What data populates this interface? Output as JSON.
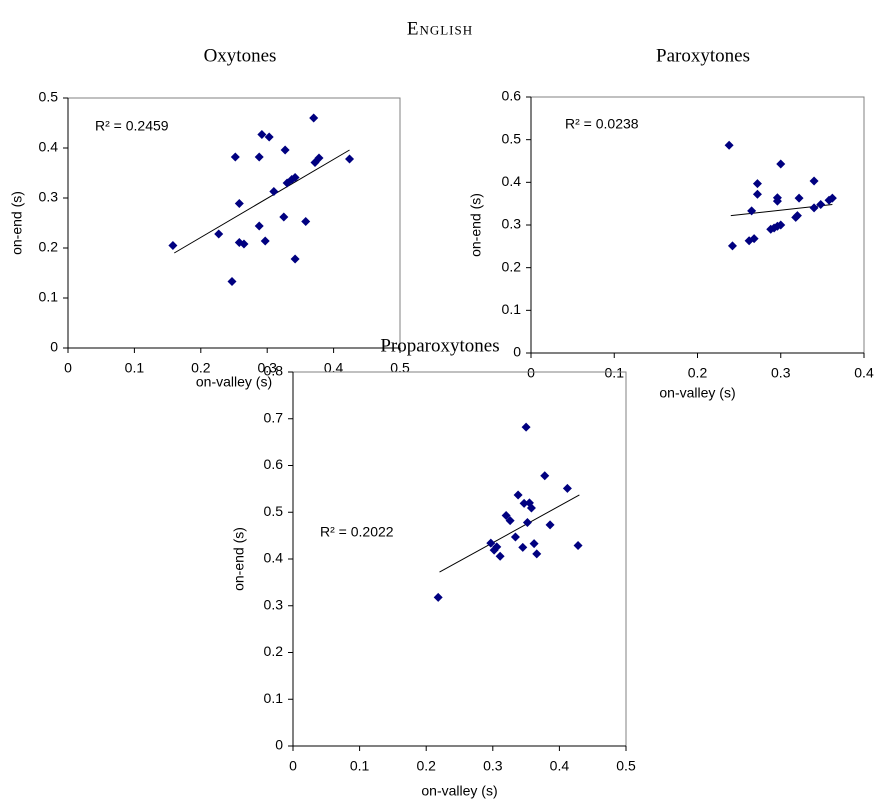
{
  "title": "English",
  "chart_data": [
    {
      "type": "scatter",
      "title": "Oxytones",
      "xlabel": "on-valley (s)",
      "ylabel": "on-end (s)",
      "annotation": "R² = 0.2459",
      "color": "#000080",
      "x": [
        0.158,
        0.227,
        0.247,
        0.252,
        0.258,
        0.258,
        0.265,
        0.288,
        0.288,
        0.292,
        0.297,
        0.303,
        0.31,
        0.325,
        0.327,
        0.33,
        0.337,
        0.342,
        0.342,
        0.358,
        0.37,
        0.372,
        0.378,
        0.424
      ],
      "y": [
        0.205,
        0.228,
        0.133,
        0.382,
        0.289,
        0.211,
        0.208,
        0.244,
        0.382,
        0.427,
        0.214,
        0.422,
        0.313,
        0.262,
        0.396,
        0.33,
        0.337,
        0.341,
        0.178,
        0.253,
        0.46,
        0.371,
        0.38,
        0.378
      ],
      "trendline": {
        "x": [
          0.16,
          0.424
        ],
        "y": [
          0.19,
          0.396
        ]
      },
      "xlim": [
        0,
        0.5
      ],
      "ylim": [
        0,
        0.5
      ],
      "xticks": [
        0,
        0.1,
        0.2,
        0.3,
        0.4,
        0.5
      ],
      "yticks": [
        0,
        0.1,
        0.2,
        0.3,
        0.4,
        0.5
      ]
    },
    {
      "type": "scatter",
      "title": "Paroxytones",
      "xlabel": "on-valley (s)",
      "ylabel": "on-end (s)",
      "annotation": "R² = 0.0238",
      "color": "#000080",
      "x": [
        0.238,
        0.242,
        0.262,
        0.265,
        0.268,
        0.272,
        0.272,
        0.288,
        0.292,
        0.296,
        0.296,
        0.296,
        0.3,
        0.3,
        0.318,
        0.32,
        0.322,
        0.34,
        0.34,
        0.348,
        0.358,
        0.362
      ],
      "y": [
        0.487,
        0.251,
        0.263,
        0.333,
        0.268,
        0.372,
        0.397,
        0.29,
        0.293,
        0.297,
        0.356,
        0.364,
        0.3,
        0.443,
        0.318,
        0.322,
        0.363,
        0.34,
        0.403,
        0.348,
        0.358,
        0.363
      ],
      "trendline": {
        "x": [
          0.24,
          0.362
        ],
        "y": [
          0.322,
          0.348
        ]
      },
      "xlim": [
        0,
        0.4
      ],
      "ylim": [
        0,
        0.6
      ],
      "xticks": [
        0,
        0.1,
        0.2,
        0.3,
        0.4
      ],
      "yticks": [
        0,
        0.1,
        0.2,
        0.3,
        0.4,
        0.5,
        0.6
      ]
    },
    {
      "type": "scatter",
      "title": "Proparoxytones",
      "xlabel": "on-valley (s)",
      "ylabel": "on-end (s)",
      "annotation": "R² = 0.2022",
      "color": "#000080",
      "x": [
        0.218,
        0.297,
        0.302,
        0.306,
        0.311,
        0.32,
        0.326,
        0.334,
        0.338,
        0.345,
        0.347,
        0.35,
        0.352,
        0.355,
        0.358,
        0.362,
        0.366,
        0.378,
        0.386,
        0.412,
        0.428
      ],
      "y": [
        0.318,
        0.434,
        0.419,
        0.426,
        0.406,
        0.493,
        0.482,
        0.447,
        0.537,
        0.425,
        0.519,
        0.682,
        0.478,
        0.52,
        0.509,
        0.433,
        0.411,
        0.578,
        0.473,
        0.551,
        0.429
      ],
      "trendline": {
        "x": [
          0.22,
          0.43
        ],
        "y": [
          0.372,
          0.537
        ]
      },
      "xlim": [
        0,
        0.5
      ],
      "ylim": [
        0,
        0.8
      ],
      "xticks": [
        0,
        0.1,
        0.2,
        0.3,
        0.4,
        0.5
      ],
      "yticks": [
        0,
        0.1,
        0.2,
        0.3,
        0.4,
        0.5,
        0.6,
        0.7,
        0.8
      ]
    }
  ]
}
